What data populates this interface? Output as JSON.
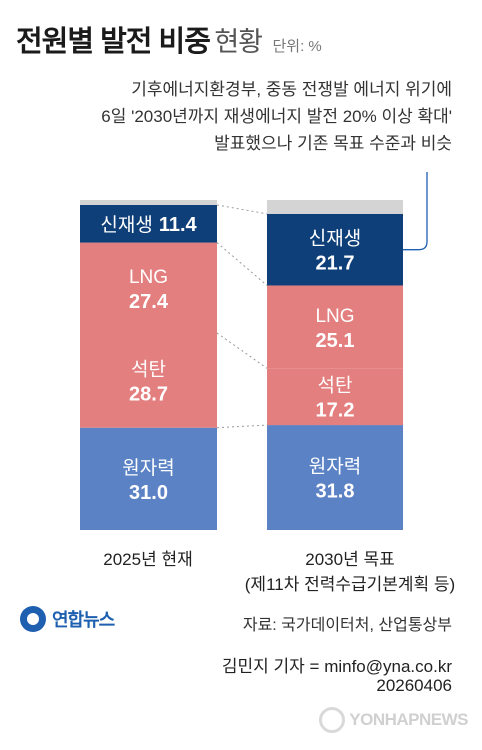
{
  "title": {
    "main": "전원별 발전 비중",
    "sub": "현황",
    "unit": "단위: %"
  },
  "note": {
    "line1": "기후에너지환경부, 중동 전쟁발 에너지 위기에",
    "line2": "6일 '2030년까지 재생에너지 발전 20% 이상 확대'",
    "line3": "발표했으나 기존 목표 수준과 비슷"
  },
  "chart_data": {
    "type": "bar",
    "stacked": true,
    "categories": [
      "2025년 현재",
      "2030년 목표"
    ],
    "category_note": [
      "",
      "(제11차 전력수급기본계획 등)"
    ],
    "series": [
      {
        "name": "원자력",
        "values": [
          31.0,
          31.8
        ],
        "color": "#5b82c4",
        "label_color": "#ffffff"
      },
      {
        "name": "석탄",
        "values": [
          28.7,
          17.2
        ],
        "color": "#e47f7f",
        "label_color": "#ffffff"
      },
      {
        "name": "LNG",
        "values": [
          27.4,
          25.1
        ],
        "color": "#e47f7f",
        "label_color": "#ffffff"
      },
      {
        "name": "신재생",
        "values": [
          11.4,
          21.7
        ],
        "color": "#0f3f78",
        "label_color": "#ffffff"
      }
    ],
    "ylim": [
      0,
      100
    ],
    "remainder_color": "#d4d4d4"
  },
  "labels": {
    "row_2025": {
      "nuclear": {
        "name": "원자력",
        "value": "31.0"
      },
      "coal": {
        "name": "석탄",
        "value": "28.7"
      },
      "lng": {
        "name": "LNG",
        "value": "27.4"
      },
      "renew": {
        "name": "신재생",
        "value": "11.4"
      }
    },
    "row_2030": {
      "nuclear": {
        "name": "원자력",
        "value": "31.8"
      },
      "coal": {
        "name": "석탄",
        "value": "17.2"
      },
      "lng": {
        "name": "LNG",
        "value": "25.1"
      },
      "renew": {
        "name": "신재생",
        "value": "21.7"
      }
    }
  },
  "x_labels": {
    "left": "2025년 현재",
    "right": "2030년 목표",
    "right_note": "(제11차 전력수급기본계획 등)"
  },
  "footer": {
    "logo_text": "연합뉴스",
    "source": "자료: 국가데이터처, 산업통상부",
    "author": "김민지 기자 = minfo@yna.co.kr",
    "date": "20260406",
    "watermark": "YONHAPNEWS"
  },
  "colors": {
    "nuclear": "#5b82c4",
    "fossil": "#e47f7f",
    "renew": "#0f3f78",
    "remainder": "#d4d4d4",
    "callout": "#1f5fb0"
  }
}
